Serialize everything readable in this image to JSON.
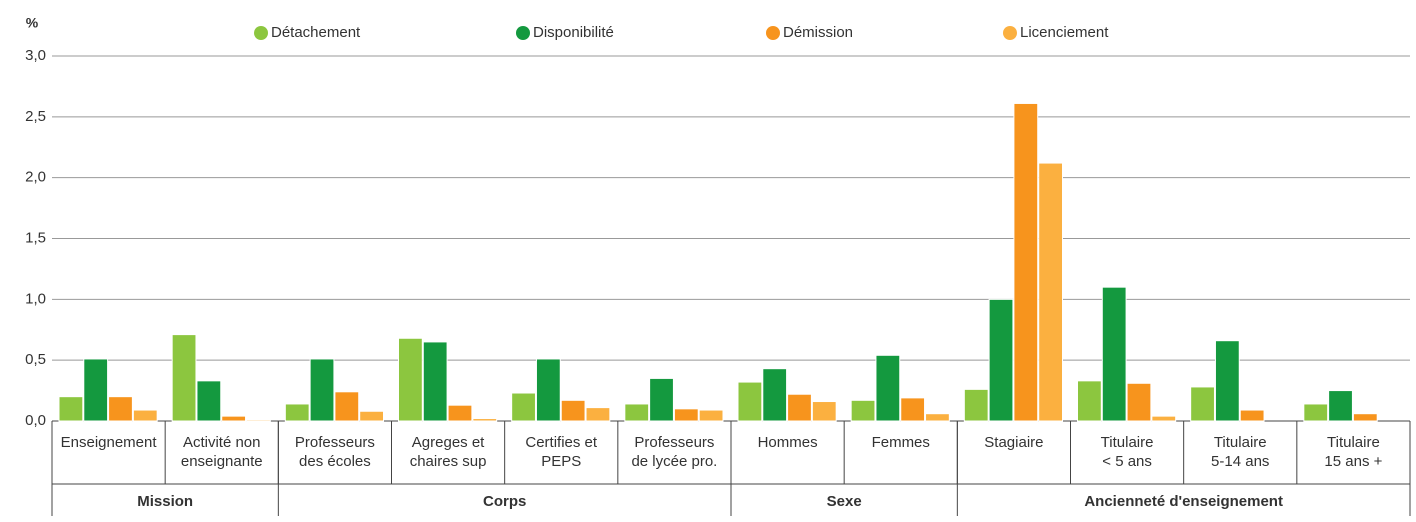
{
  "chart_data": {
    "type": "bar",
    "y_label": "%",
    "categories": [
      "Enseignement",
      "Activité non\nenseignante",
      "Professeurs\ndes écoles",
      "Agreges et\nchaires sup",
      "Certifies et\nPEPS",
      "Professeurs\nde lycée pro.",
      "Hommes",
      "Femmes",
      "Stagiaire",
      "Titulaire\n< 5 ans",
      "Titulaire\n5-14 ans",
      "Titulaire\n15 ans +"
    ],
    "groups": [
      {
        "label": "Mission",
        "count": 2
      },
      {
        "label": "Corps",
        "count": 4
      },
      {
        "label": "Sexe",
        "count": 2
      },
      {
        "label": "Ancienneté d'enseignement",
        "count": 4
      }
    ],
    "series": [
      {
        "name": "Détachement",
        "color": "#8cc63f",
        "values": [
          0.2,
          0.71,
          0.14,
          0.68,
          0.23,
          0.14,
          0.32,
          0.17,
          0.26,
          0.33,
          0.28,
          0.14
        ]
      },
      {
        "name": "Disponibilité",
        "color": "#14993f",
        "values": [
          0.51,
          0.33,
          0.51,
          0.65,
          0.51,
          0.35,
          0.43,
          0.54,
          1.0,
          1.1,
          0.66,
          0.25
        ]
      },
      {
        "name": "Démission",
        "color": "#f7941d",
        "values": [
          0.2,
          0.04,
          0.24,
          0.13,
          0.17,
          0.1,
          0.22,
          0.19,
          2.61,
          0.31,
          0.09,
          0.06
        ]
      },
      {
        "name": "Licenciement",
        "color": "#fbb040",
        "values": [
          0.09,
          0.01,
          0.08,
          0.02,
          0.11,
          0.09,
          0.16,
          0.06,
          2.12,
          0.04,
          0,
          0
        ]
      }
    ],
    "ylim": [
      0,
      3
    ],
    "yticks": [
      {
        "value": 0,
        "label": "0,0"
      },
      {
        "value": 0.5,
        "label": "0,5"
      },
      {
        "value": 1,
        "label": "1,0"
      },
      {
        "value": 1.5,
        "label": "1,5"
      },
      {
        "value": 2,
        "label": "2,0"
      },
      {
        "value": 2.5,
        "label": "2,5"
      },
      {
        "value": 3,
        "label": "3,0"
      }
    ],
    "grid": true,
    "legend": "top"
  }
}
